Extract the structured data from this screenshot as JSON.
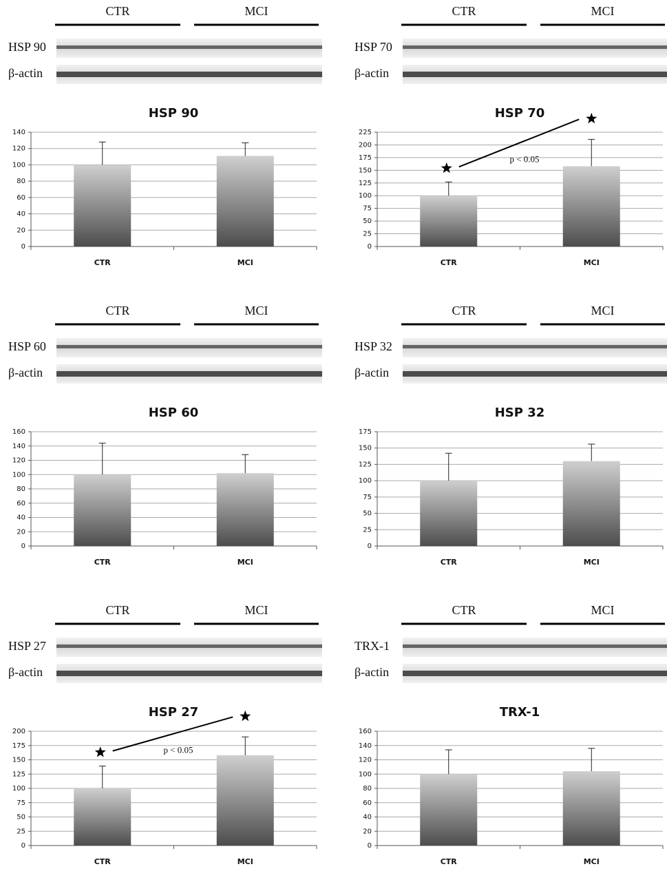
{
  "chart_data": [
    {
      "type": "bar",
      "title": "HSP 90",
      "blot": {
        "groups": [
          "CTR",
          "MCI"
        ],
        "rows": [
          "HSP 90",
          "β-actin"
        ]
      },
      "categories": [
        "CTR",
        "MCI"
      ],
      "values": [
        100,
        111
      ],
      "errors": [
        28,
        16
      ],
      "ylim": [
        0,
        140
      ],
      "yticks": [
        0,
        20,
        40,
        60,
        80,
        100,
        120,
        140
      ],
      "grid": true
    },
    {
      "type": "bar",
      "title": "HSP 70",
      "blot": {
        "groups": [
          "CTR",
          "MCI"
        ],
        "rows": [
          "HSP 70",
          "β-actin"
        ]
      },
      "categories": [
        "CTR",
        "MCI"
      ],
      "values": [
        100,
        158
      ],
      "errors": [
        27,
        53
      ],
      "ylim": [
        0,
        225
      ],
      "yticks": [
        0,
        25,
        50,
        75,
        100,
        125,
        150,
        175,
        200,
        225
      ],
      "grid": true,
      "annotation": "p < 0.05"
    },
    {
      "type": "bar",
      "title": "HSP 60",
      "blot": {
        "groups": [
          "CTR",
          "MCI"
        ],
        "rows": [
          "HSP 60",
          "β-actin"
        ]
      },
      "categories": [
        "CTR",
        "MCI"
      ],
      "values": [
        100,
        102
      ],
      "errors": [
        44,
        26
      ],
      "ylim": [
        0,
        160
      ],
      "yticks": [
        0,
        20,
        40,
        60,
        80,
        100,
        120,
        140,
        160
      ],
      "grid": true
    },
    {
      "type": "bar",
      "title": "HSP 32",
      "blot": {
        "groups": [
          "CTR",
          "MCI"
        ],
        "rows": [
          "HSP 32",
          "β-actin"
        ]
      },
      "categories": [
        "CTR",
        "MCI"
      ],
      "values": [
        100,
        130
      ],
      "errors": [
        42,
        26
      ],
      "ylim": [
        0,
        175
      ],
      "yticks": [
        0,
        25,
        50,
        75,
        100,
        125,
        150,
        175
      ],
      "grid": true
    },
    {
      "type": "bar",
      "title": "HSP 27",
      "blot": {
        "groups": [
          "CTR",
          "MCI"
        ],
        "rows": [
          "HSP 27",
          "β-actin"
        ]
      },
      "categories": [
        "CTR",
        "MCI"
      ],
      "values": [
        100,
        158
      ],
      "errors": [
        39,
        32
      ],
      "ylim": [
        0,
        200
      ],
      "yticks": [
        0,
        25,
        50,
        75,
        100,
        125,
        150,
        175,
        200
      ],
      "grid": true,
      "annotation": "p < 0.05"
    },
    {
      "type": "bar",
      "title": "TRX-1",
      "blot": {
        "groups": [
          "CTR",
          "MCI"
        ],
        "rows": [
          "TRX-1",
          "β-actin"
        ]
      },
      "categories": [
        "CTR",
        "MCI"
      ],
      "values": [
        100,
        104
      ],
      "errors": [
        34,
        32
      ],
      "ylim": [
        0,
        160
      ],
      "yticks": [
        0,
        20,
        40,
        60,
        80,
        100,
        120,
        140,
        160
      ],
      "grid": true
    }
  ]
}
